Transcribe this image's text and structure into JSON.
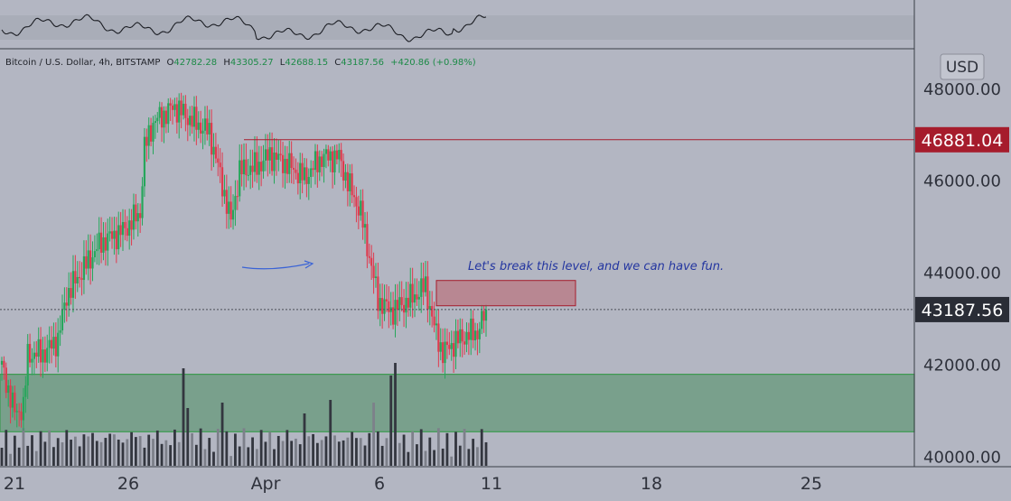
{
  "chart_data": {
    "type": "candlestick",
    "symbol": "Bitcoin / U.S. Dollar, 4h, BITSTAMP",
    "ohlc_labels": {
      "o": "O",
      "h": "H",
      "l": "L",
      "c": "C"
    },
    "ohlc": {
      "open": "42782.28",
      "high": "43305.27",
      "low": "42688.15",
      "close": "43187.56",
      "change": "+420.86 (+0.98%)"
    },
    "currency": "USD",
    "y_ticks": [
      40000,
      42000,
      44000,
      46000,
      48000
    ],
    "y_tick_labels": [
      "40000.00",
      "42000.00",
      "44000.00",
      "46000.00",
      "48000.00"
    ],
    "x_tick_labels": [
      "21",
      "26",
      "Apr",
      "6",
      "11",
      "18",
      "25"
    ],
    "ylim": [
      39770,
      48860
    ],
    "last_price": {
      "value": 43187.56,
      "label": "43187.56"
    },
    "resistance_level": {
      "value": 46881.04,
      "label": "46881.04"
    },
    "support_zone": {
      "top": 41780,
      "bottom": 40530
    },
    "resistance_box": {
      "top": 43820,
      "bottom": 43270
    },
    "annotation": "Let's break this level, and we can have fun.",
    "colors": {
      "up": "#26a65b",
      "down": "#e03a4e",
      "level": "#a61c2c",
      "zone": "#6f9c82",
      "box": "#b87f8a",
      "note": "#2436a0",
      "last_price_bg": "#2a2d36"
    }
  }
}
